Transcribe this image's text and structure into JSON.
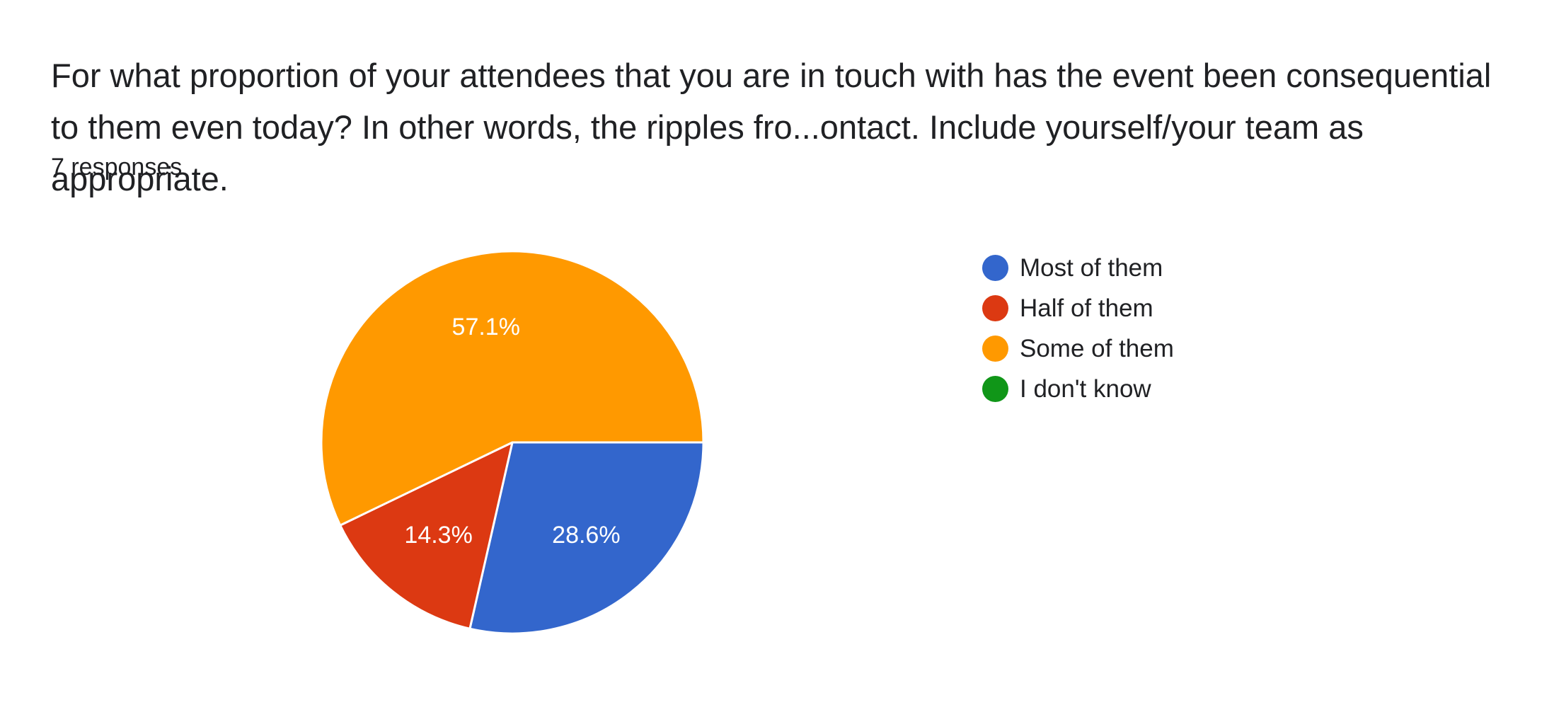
{
  "question": {
    "title": "For what proportion of your attendees that you are in touch with has the event been consequential to them even today?  In other words, the ripples fro...ontact.  Include yourself/your team as appropriate.",
    "responses": "7 responses"
  },
  "chart_data": {
    "type": "pie",
    "title": "For what proportion of your attendees that you are in touch with has the event been consequential to them even today?  In other words, the ripples fro...ontact.  Include yourself/your team as appropriate.",
    "total_responses": 7,
    "legend_position": "right",
    "slices": [
      {
        "name": "Most of them",
        "value": 2,
        "percent": 28.6,
        "label": "28.6%",
        "color": "#3366cc"
      },
      {
        "name": "Half of them",
        "value": 1,
        "percent": 14.3,
        "label": "14.3%",
        "color": "#dc3912"
      },
      {
        "name": "Some of them",
        "value": 4,
        "percent": 57.1,
        "label": "57.1%",
        "color": "#ff9900"
      },
      {
        "name": "I don't know",
        "value": 0,
        "percent": 0,
        "label": "",
        "color": "#109618"
      }
    ]
  }
}
